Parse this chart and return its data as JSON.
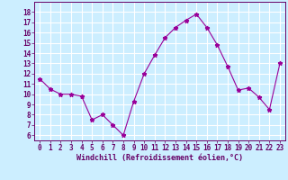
{
  "x": [
    0,
    1,
    2,
    3,
    4,
    5,
    6,
    7,
    8,
    9,
    10,
    11,
    12,
    13,
    14,
    15,
    16,
    17,
    18,
    19,
    20,
    21,
    22,
    23
  ],
  "y": [
    11.5,
    10.5,
    10.0,
    10.0,
    9.8,
    7.5,
    8.0,
    7.0,
    6.0,
    9.3,
    12.0,
    13.8,
    15.5,
    16.5,
    17.2,
    17.8,
    16.5,
    14.8,
    12.7,
    10.4,
    10.6,
    9.7,
    8.5,
    13.0
  ],
  "line_color": "#990099",
  "marker": "*",
  "marker_size": 3.5,
  "bg_color": "#cceeff",
  "grid_color": "#ffffff",
  "xlabel": "Windchill (Refroidissement éolien,°C)",
  "xlabel_color": "#660066",
  "xlabel_fontsize": 6.0,
  "tick_color": "#660066",
  "tick_fontsize": 5.5,
  "ylim": [
    5.5,
    19
  ],
  "xlim": [
    -0.5,
    23.5
  ],
  "yticks": [
    6,
    7,
    8,
    9,
    10,
    11,
    12,
    13,
    14,
    15,
    16,
    17,
    18
  ],
  "xticks": [
    0,
    1,
    2,
    3,
    4,
    5,
    6,
    7,
    8,
    9,
    10,
    11,
    12,
    13,
    14,
    15,
    16,
    17,
    18,
    19,
    20,
    21,
    22,
    23
  ]
}
